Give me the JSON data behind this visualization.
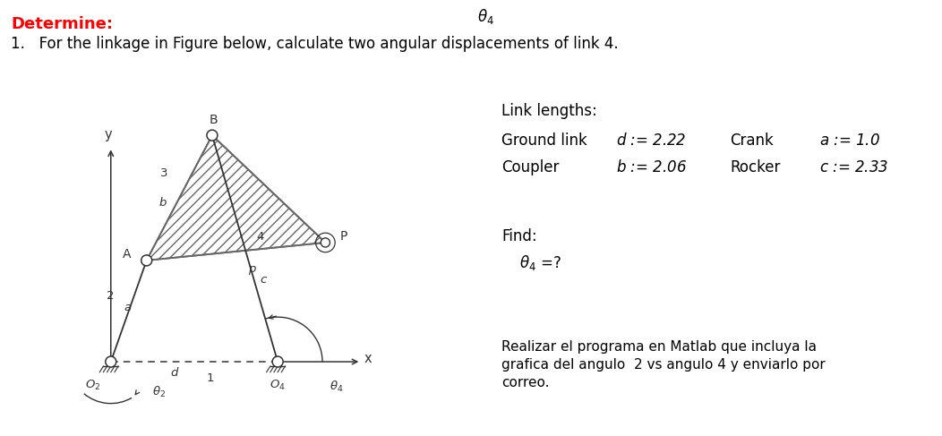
{
  "title_red": "Determine:",
  "title_black": "1.   For the linkage in Figure below, calculate two angular displacements of link 4.",
  "theta4_top": "$\\theta_4$",
  "link_lengths_title": "Link lengths:",
  "ground_link_label": "Ground link",
  "crank_label": "Crank",
  "coupler_label": "Coupler",
  "rocker_label": "Rocker",
  "find_label": "Find:",
  "note_line1": "Realizar el programa en Matlab que incluya la",
  "note_line2": "grafica del angulo  2 vs angulo 4 y enviarlo por",
  "note_line3": "correo.",
  "bg_color": "#ffffff",
  "dark": "#333333",
  "gray_link": "#666666"
}
